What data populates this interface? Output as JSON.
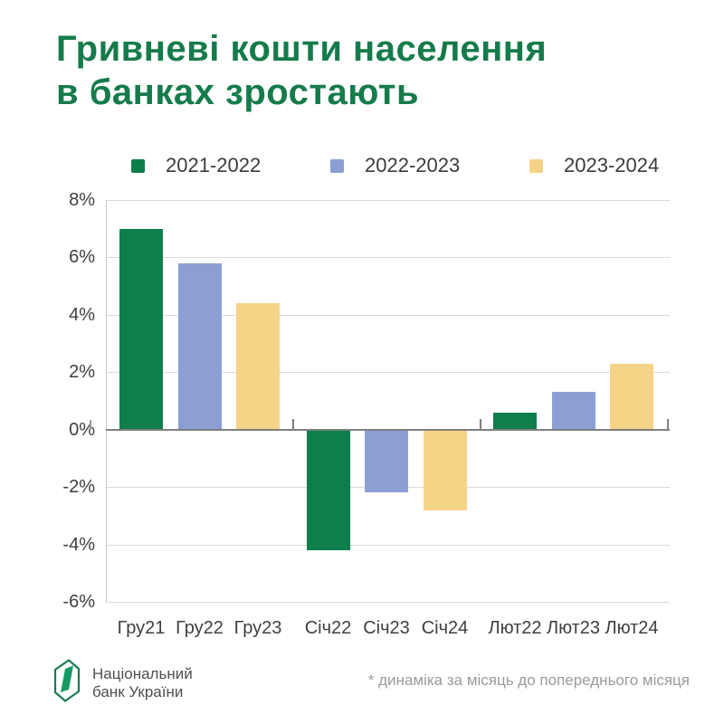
{
  "title": {
    "line1": "Гривневі кошти населення",
    "line2": "в банках зростають"
  },
  "legend": {
    "items": [
      {
        "label": "2021-2022",
        "color": "#0E7E4A"
      },
      {
        "label": "2022-2023",
        "color": "#8C9FD5"
      },
      {
        "label": "2023-2024",
        "color": "#F6D487"
      }
    ]
  },
  "chart_data": {
    "type": "bar",
    "title": "Гривневі кошти населення в банках зростають",
    "unit": "%",
    "ylim": [
      -6,
      8
    ],
    "ytick_step": 2,
    "grid": true,
    "legend_position": "top",
    "categories": [
      "Гру21",
      "Гру22",
      "Гру23",
      "Січ22",
      "Січ23",
      "Січ24",
      "Лют22",
      "Лют23",
      "Лют24"
    ],
    "series_names": [
      "2021-2022",
      "2022-2023",
      "2023-2024"
    ],
    "series_colors": {
      "2021-2022": "#0E7E4A",
      "2022-2023": "#8C9FD5",
      "2023-2024": "#F6D487"
    },
    "bars": [
      {
        "category": "Гру21",
        "series": "2021-2022",
        "value": 7.0
      },
      {
        "category": "Гру22",
        "series": "2022-2023",
        "value": 5.8
      },
      {
        "category": "Гру23",
        "series": "2023-2024",
        "value": 4.4
      },
      {
        "category": "Січ22",
        "series": "2021-2022",
        "value": -4.2
      },
      {
        "category": "Січ23",
        "series": "2022-2023",
        "value": -2.2
      },
      {
        "category": "Січ24",
        "series": "2023-2024",
        "value": -2.8
      },
      {
        "category": "Лют22",
        "series": "2021-2022",
        "value": 0.6
      },
      {
        "category": "Лют23",
        "series": "2022-2023",
        "value": 1.3
      },
      {
        "category": "Лют24",
        "series": "2023-2024",
        "value": 2.3
      }
    ]
  },
  "footer": {
    "logo": {
      "line1": "Національний",
      "line2": "банк України"
    },
    "note": "* динаміка за місяць до попереднього місяця"
  },
  "colors": {
    "title_green": "#157B4B",
    "logo_green": "#169B62",
    "logo_outline": "#1D7A52",
    "grid": "#DBDBDB",
    "zero_line": "#7F7F7F",
    "axis_text": "#3F3F3F",
    "note_gray": "#9B9B9B"
  }
}
